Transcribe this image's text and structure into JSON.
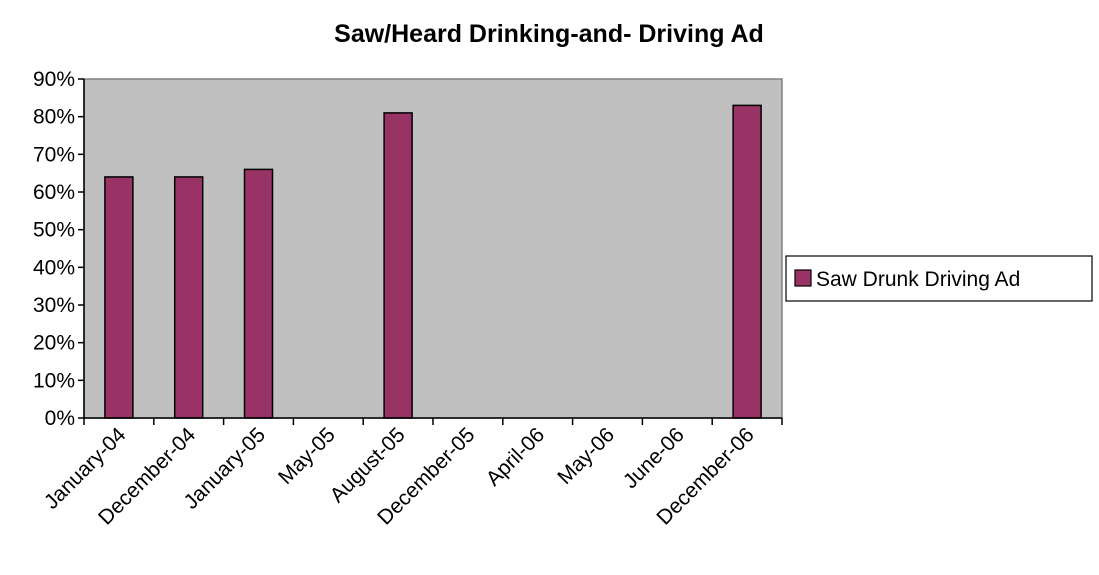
{
  "chart_data": {
    "type": "bar",
    "title": "Saw/Heard Drinking-and- Driving Ad",
    "xlabel": "",
    "ylabel": "",
    "categories": [
      "January-04",
      "December-04",
      "January-05",
      "May-05",
      "August-05",
      "December-05",
      "April-06",
      "May-06",
      "June-06",
      "December-06"
    ],
    "series": [
      {
        "name": "Saw Drunk Driving Ad",
        "values": [
          64,
          64,
          66,
          null,
          81,
          null,
          null,
          null,
          null,
          83
        ]
      }
    ],
    "ylim": [
      0,
      90
    ],
    "ytick_step": 10,
    "y_tick_format": "percent",
    "grid": false,
    "legend": "right",
    "colors": {
      "bar_fill": "#993366",
      "plot_background": "#c0c0c0",
      "axis": "#000000",
      "outline": "#808080"
    }
  }
}
